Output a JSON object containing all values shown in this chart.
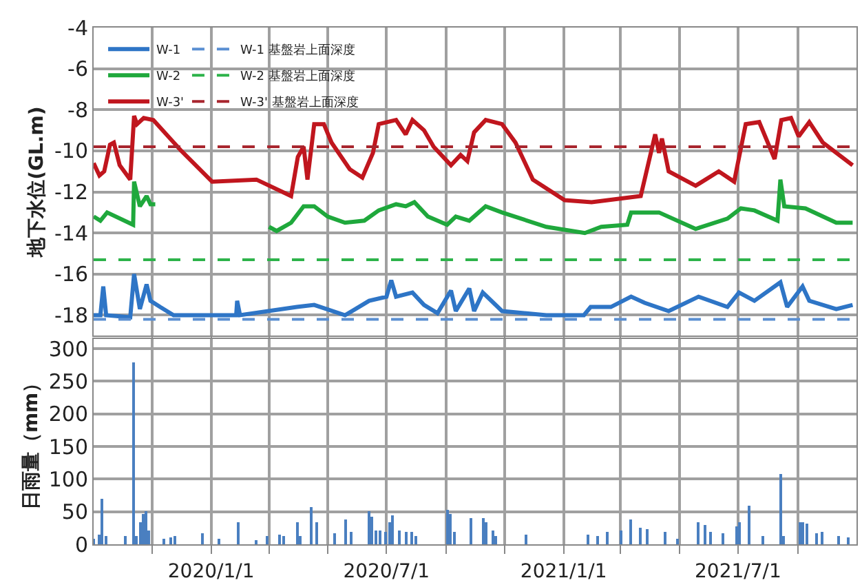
{
  "chart_data": [
    {
      "type": "line",
      "ylabel": "地下水位(GL.m)",
      "xlim": [
        "2019-09-01",
        "2021-11-01"
      ],
      "ylim": [
        -19,
        -4
      ],
      "yticks": [
        -18,
        -16,
        -14,
        -12,
        -10,
        -8,
        -6,
        -4
      ],
      "xticks": [
        {
          "value": "2019-11-01",
          "label": null
        },
        {
          "value": "2020-01-01",
          "label": null
        },
        {
          "value": "2020-03-01",
          "label": null
        },
        {
          "value": "2020-05-01",
          "label": null
        },
        {
          "value": "2020-07-01",
          "label": null
        },
        {
          "value": "2020-09-01",
          "label": null
        },
        {
          "value": "2020-11-01",
          "label": null
        },
        {
          "value": "2021-01-01",
          "label": null
        },
        {
          "value": "2021-03-01",
          "label": null
        },
        {
          "value": "2021-05-01",
          "label": null
        },
        {
          "value": "2021-07-01",
          "label": null
        },
        {
          "value": "2021-09-01",
          "label": null
        }
      ],
      "tick_labels": "y",
      "grid": true,
      "legend": "top left",
      "series": [
        {
          "name": "W-1",
          "color": "#2e75c6",
          "x": [
            "2019-09-01",
            "2019-09-08",
            "2019-09-11",
            "2019-09-14",
            "2019-10-09",
            "2019-10-13",
            "2019-10-19",
            "2019-10-26",
            "2019-10-30",
            "2019-11-09",
            "2019-11-23",
            "2019-12-31",
            "2020-01-27",
            "2020-01-28",
            "2020-01-31",
            "2020-03-30",
            "2020-04-17",
            "2020-05-19",
            "2020-06-13",
            "2020-07-01",
            "2020-07-06",
            "2020-07-11",
            "2020-07-28",
            "2020-08-09",
            "2020-08-23",
            "2020-09-06",
            "2020-09-11",
            "2020-09-25",
            "2020-09-30",
            "2020-10-09",
            "2020-10-29",
            "2020-12-14",
            "2021-01-22",
            "2021-01-29",
            "2021-02-19",
            "2021-03-12",
            "2021-03-26",
            "2021-04-20",
            "2021-05-21",
            "2021-06-20",
            "2021-07-02",
            "2021-07-18",
            "2021-08-14",
            "2021-08-21",
            "2021-09-06",
            "2021-09-13",
            "2021-10-11",
            "2021-10-28"
          ],
          "values": [
            -18.0,
            -18.0,
            -16.6,
            -18.0,
            -18.1,
            -16.0,
            -17.7,
            -16.5,
            -17.3,
            -17.6,
            -18.0,
            -18.0,
            -18.0,
            -17.3,
            -18.0,
            -17.6,
            -17.5,
            -18.0,
            -17.3,
            -17.1,
            -16.3,
            -17.1,
            -16.9,
            -17.5,
            -17.9,
            -16.8,
            -17.8,
            -16.7,
            -17.8,
            -16.9,
            -17.8,
            -18.0,
            -18.0,
            -17.6,
            -17.6,
            -17.1,
            -17.4,
            -17.8,
            -17.1,
            -17.6,
            -16.9,
            -17.3,
            -16.4,
            -17.6,
            -16.6,
            -17.3,
            -17.7,
            -17.5
          ]
        },
        {
          "name": "W-2",
          "color": "#1fa83c",
          "x": [
            "2019-09-01",
            "2019-09-08",
            "2019-09-15",
            "2019-10-12",
            "2019-10-13",
            "2019-10-19",
            "2019-10-26",
            "2019-10-30",
            "2019-11-04",
            "2020-01-01",
            "2020-03-01",
            "2020-03-09",
            "2020-03-24",
            "2020-04-06",
            "2020-04-17",
            "2020-05-01",
            "2020-05-19",
            "2020-06-08",
            "2020-06-23",
            "2020-07-11",
            "2020-07-21",
            "2020-07-30",
            "2020-08-13",
            "2020-09-02",
            "2020-09-11",
            "2020-09-25",
            "2020-10-12",
            "2020-10-29",
            "2020-12-14",
            "2021-01-23",
            "2021-02-09",
            "2021-03-08",
            "2021-03-12",
            "2021-04-10",
            "2021-05-18",
            "2021-06-20",
            "2021-07-04",
            "2021-07-18",
            "2021-08-11",
            "2021-08-14",
            "2021-08-18",
            "2021-09-09",
            "2021-10-11",
            "2021-10-28"
          ],
          "values": [
            -13.2,
            -13.4,
            -13.0,
            -13.6,
            -11.5,
            -12.7,
            -12.2,
            -12.6,
            -12.6,
            null,
            -13.7,
            -13.9,
            -13.5,
            -12.7,
            -12.7,
            -13.2,
            -13.5,
            -13.4,
            -12.9,
            -12.6,
            -12.7,
            -12.5,
            -13.2,
            -13.6,
            -13.2,
            -13.4,
            -12.7,
            -13.0,
            -13.7,
            -14.0,
            -13.7,
            -13.6,
            -13.0,
            -13.0,
            -13.8,
            -13.3,
            -12.8,
            -12.9,
            -13.4,
            -11.4,
            -12.7,
            -12.8,
            -13.5,
            -13.5
          ]
        },
        {
          "name": "W-3'",
          "color": "#c0161e",
          "x": [
            "2019-09-01",
            "2019-09-07",
            "2019-09-12",
            "2019-09-18",
            "2019-09-22",
            "2019-09-28",
            "2019-10-09",
            "2019-10-13",
            "2019-10-16",
            "2019-10-23",
            "2019-11-02",
            "2019-12-01",
            "2020-01-02",
            "2020-02-17",
            "2020-02-26",
            "2020-03-24",
            "2020-03-31",
            "2020-04-06",
            "2020-04-10",
            "2020-04-17",
            "2020-04-27",
            "2020-05-05",
            "2020-05-24",
            "2020-06-06",
            "2020-06-17",
            "2020-06-23",
            "2020-07-11",
            "2020-07-21",
            "2020-07-28",
            "2020-08-09",
            "2020-08-19",
            "2020-09-06",
            "2020-09-16",
            "2020-09-23",
            "2020-09-30",
            "2020-10-12",
            "2020-10-29",
            "2020-11-12",
            "2020-11-30",
            "2021-01-02",
            "2021-01-30",
            "2021-03-22",
            "2021-04-06",
            "2021-04-10",
            "2021-04-13",
            "2021-04-20",
            "2021-05-18",
            "2021-06-11",
            "2021-06-27",
            "2021-07-09",
            "2021-07-23",
            "2021-08-08",
            "2021-08-15",
            "2021-08-25",
            "2021-09-02",
            "2021-09-13",
            "2021-09-27",
            "2021-10-28"
          ],
          "values": [
            -10.6,
            -11.2,
            -11.0,
            -9.7,
            -9.6,
            -10.7,
            -11.4,
            -8.3,
            -8.7,
            -8.4,
            -8.5,
            -10.0,
            -11.5,
            -11.4,
            -11.6,
            -12.2,
            -10.3,
            -9.8,
            -11.4,
            -8.7,
            -8.7,
            -9.6,
            -10.9,
            -11.3,
            -10.1,
            -8.7,
            -8.5,
            -9.2,
            -8.5,
            -9.0,
            -9.8,
            -10.7,
            -10.2,
            -10.5,
            -9.1,
            -8.5,
            -8.7,
            -9.6,
            -11.4,
            -12.4,
            -12.5,
            -12.2,
            -9.2,
            -10.1,
            -9.4,
            -11.0,
            -11.7,
            -11.0,
            -11.5,
            -8.7,
            -8.6,
            -10.4,
            -8.5,
            -8.4,
            -9.3,
            -8.6,
            -9.6,
            -10.7
          ]
        }
      ],
      "ref_lines": [
        {
          "axis": "y",
          "value": -18.2,
          "label": "W-1 基盤岩上面深度",
          "color": "#5a8fd2",
          "line_style": "dashed"
        },
        {
          "axis": "y",
          "value": -15.3,
          "label": "W-2 基盤岩上面深度",
          "color": "#2db34a",
          "line_style": "dashed"
        },
        {
          "axis": "y",
          "value": -9.8,
          "label": "W-3' 基盤岩上面深度",
          "color": "#a8262e",
          "line_style": "dashed"
        }
      ]
    },
    {
      "type": "bar",
      "ylabel": "日雨量（mm）",
      "xlim": [
        "2019-09-01",
        "2021-11-01"
      ],
      "ylim": [
        0,
        315
      ],
      "yticks": [
        0,
        50,
        100,
        150,
        200,
        250,
        300
      ],
      "xticks": [
        {
          "value": "2019-11-01",
          "label": null
        },
        {
          "value": "2020-01-01",
          "label": "2020/1/1"
        },
        {
          "value": "2020-03-01",
          "label": null
        },
        {
          "value": "2020-05-01",
          "label": null
        },
        {
          "value": "2020-07-01",
          "label": "2020/7/1"
        },
        {
          "value": "2020-09-01",
          "label": null
        },
        {
          "value": "2020-11-01",
          "label": null
        },
        {
          "value": "2021-01-01",
          "label": "2021/1/1"
        },
        {
          "value": "2021-03-01",
          "label": null
        },
        {
          "value": "2021-05-01",
          "label": null
        },
        {
          "value": "2021-07-01",
          "label": "2021/7/1"
        },
        {
          "value": "2021-09-01",
          "label": null
        }
      ],
      "grid": true,
      "color": "#4a7fc0",
      "x": [
        "2019-09-01",
        "2019-09-07",
        "2019-09-10",
        "2019-09-14",
        "2019-10-04",
        "2019-10-13",
        "2019-10-16",
        "2019-10-20",
        "2019-10-23",
        "2019-10-26",
        "2019-10-28",
        "2019-11-13",
        "2019-11-20",
        "2019-11-24",
        "2019-12-23",
        "2020-01-09",
        "2020-01-29",
        "2020-02-17",
        "2020-02-28",
        "2020-03-12",
        "2020-03-16",
        "2020-03-30",
        "2020-04-03",
        "2020-04-14",
        "2020-04-20",
        "2020-05-08",
        "2020-05-20",
        "2020-05-26",
        "2020-06-13",
        "2020-06-16",
        "2020-06-20",
        "2020-06-24",
        "2020-06-30",
        "2020-07-04",
        "2020-07-08",
        "2020-07-14",
        "2020-07-22",
        "2020-07-28",
        "2020-08-01",
        "2020-09-02",
        "2020-09-06",
        "2020-09-09",
        "2020-09-27",
        "2020-10-09",
        "2020-10-12",
        "2020-10-19",
        "2020-10-23",
        "2020-11-23",
        "2021-01-26",
        "2021-02-05",
        "2021-02-16",
        "2021-03-01",
        "2021-03-12",
        "2021-03-22",
        "2021-03-29",
        "2021-04-17",
        "2021-04-29",
        "2021-05-21",
        "2021-05-28",
        "2021-06-03",
        "2021-06-15",
        "2021-06-29",
        "2021-07-02",
        "2021-07-13",
        "2021-07-27",
        "2021-08-14",
        "2021-08-18",
        "2021-09-03",
        "2021-09-06",
        "2021-09-10",
        "2021-09-20",
        "2021-09-27",
        "2021-10-14",
        "2021-10-24"
      ],
      "values": [
        8,
        15,
        69,
        12,
        13,
        279,
        12,
        33,
        47,
        50,
        22,
        8,
        10,
        13,
        17,
        8,
        35,
        6,
        12,
        15,
        12,
        34,
        12,
        57,
        33,
        17,
        38,
        20,
        50,
        43,
        22,
        22,
        19,
        33,
        44,
        22,
        20,
        19,
        12,
        53,
        47,
        19,
        41,
        40,
        33,
        22,
        13,
        15,
        15,
        12,
        19,
        21,
        38,
        26,
        24,
        19,
        8,
        33,
        29,
        20,
        17,
        27,
        33,
        60,
        12,
        109,
        13,
        33,
        33,
        31,
        17,
        19,
        12,
        10
      ]
    }
  ]
}
